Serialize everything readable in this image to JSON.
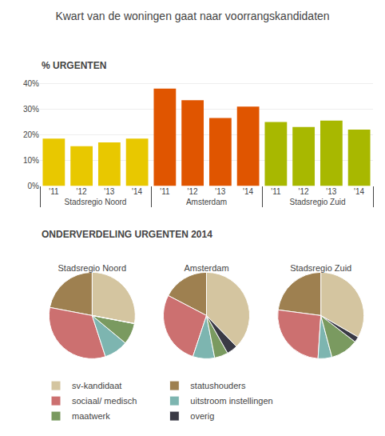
{
  "chart_data": [
    {
      "type": "bar",
      "title": "Kwart van de woningen gaat naar voorrangskandidaten",
      "subtitle": "% URGENTEN",
      "categories": [
        "'11",
        "'12",
        "'13",
        "'14"
      ],
      "series": [
        {
          "name": "Stadsregio Noord",
          "color": "#e8c800",
          "values": [
            18.5,
            15.5,
            17.0,
            18.5
          ]
        },
        {
          "name": "Amsterdam",
          "color": "#e05500",
          "values": [
            38.0,
            33.5,
            26.5,
            31.0
          ]
        },
        {
          "name": "Stadsregio Zuid",
          "color": "#a8b800",
          "values": [
            25.0,
            23.0,
            25.5,
            22.0
          ]
        }
      ],
      "ylim": [
        0,
        42
      ],
      "yticks": [
        {
          "value": 0,
          "label": "0%"
        },
        {
          "value": 10,
          "label": "10%"
        },
        {
          "value": 20,
          "label": "20%"
        },
        {
          "value": 30,
          "label": "30%"
        },
        {
          "value": 40,
          "label": "40%"
        }
      ],
      "grid": true
    },
    {
      "type": "pie",
      "title": "ONDERVERDELING URGENTEN 2014",
      "categories": [
        "sv-kandidaat",
        "statushouders",
        "sociaal/ medisch",
        "uitstroom instellingen",
        "maatwerk",
        "overig"
      ],
      "colors": [
        "#d4c5a0",
        "#9e8050",
        "#cc7070",
        "#7db5b0",
        "#7a9a60",
        "#3a3a45"
      ],
      "series": [
        {
          "name": "Stadsregio Noord",
          "values": [
            28,
            22,
            33,
            9,
            8,
            0
          ]
        },
        {
          "name": "Amsterdam",
          "values": [
            37,
            17,
            27,
            8,
            5,
            4
          ]
        },
        {
          "name": "Stadsregio Zuid",
          "values": [
            32,
            22,
            25,
            5,
            10,
            2
          ]
        }
      ],
      "legend": "bottom"
    }
  ]
}
